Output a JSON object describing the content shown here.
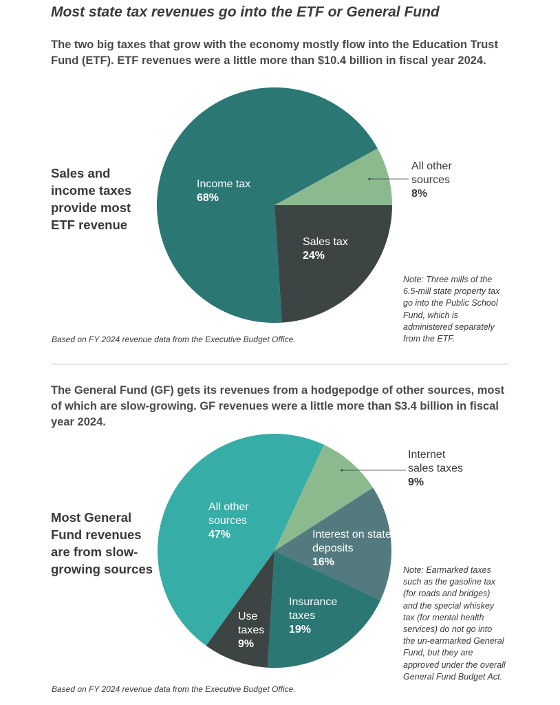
{
  "title": "Most state tax revenues go into the ETF or General Fund",
  "chart_data": [
    {
      "type": "pie",
      "title": "Sales and income taxes provide most ETF revenue",
      "subtitle": "The two big taxes that grow with the economy mostly flow into the Education Trust Fund (ETF). ETF revenues were a little more than $10.4 billion in fiscal year 2024.",
      "note": "Note: Three mills of the 6.5-mill state property tax go into the Public School Fund, which is administered separately from the ETF.",
      "source": "Based on FY 2024 revenue data from the Executive Budget Office.",
      "categories": [
        "Sales tax",
        "Income tax",
        "All other sources"
      ],
      "values": [
        24,
        68,
        8
      ],
      "value_labels": [
        "24%",
        "68%",
        "8%"
      ],
      "colors": [
        "#3c4543",
        "#2a7774",
        "#8bba8f"
      ]
    },
    {
      "type": "pie",
      "title": "Most General Fund revenues are from slow-growing sources",
      "subtitle": "The General Fund (GF) gets its revenues from a hodgepodge of other sources, most of which are slow-growing. GF revenues were a little more than $3.4 billion in fiscal year 2024.",
      "note": "Note: Earmarked taxes such as the gasoline tax (for roads and bridges) and the special whiskey tax (for mental health services) do not go into the un-earmarked General Fund, but they are approved under the overall General Fund Budget Act.",
      "source": "Based on FY 2024 revenue data from the Executive Budget Office.",
      "categories": [
        "Internet sales taxes",
        "Interest on state deposits",
        "Insurance taxes",
        "Use taxes",
        "All other sources"
      ],
      "values": [
        9,
        16,
        19,
        9,
        47
      ],
      "value_labels": [
        "9%",
        "16%",
        "19%",
        "9%",
        "47%"
      ],
      "colors": [
        "#8bba8f",
        "#537a7e",
        "#2a7774",
        "#3c4543",
        "#36ada6"
      ]
    }
  ]
}
